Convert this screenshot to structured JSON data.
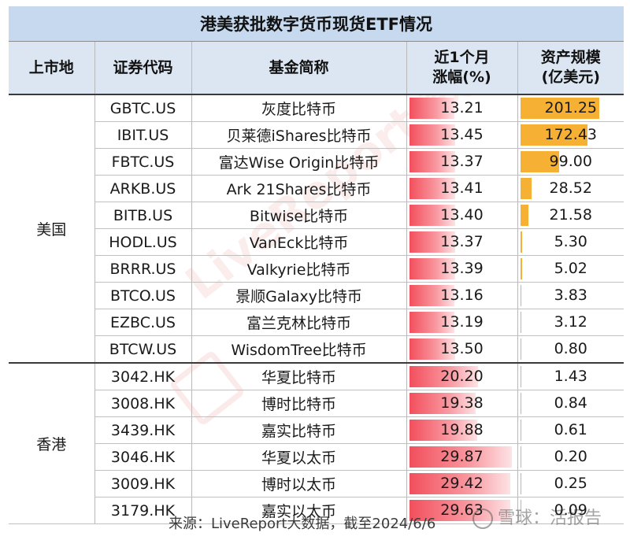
{
  "title": "港美获批数字货币现货ETF情况",
  "headers": {
    "market": "上市地",
    "ticker": "证券代码",
    "name": "基金简称",
    "change_line1": "近1个月",
    "change_line2": "涨幅(%)",
    "aum_line1": "资产规模",
    "aum_line2": "(亿美元)"
  },
  "groups": [
    {
      "region": "美国",
      "rows": [
        {
          "ticker": "GBTC.US",
          "name": "灰度比特币",
          "change": "13.21",
          "aum": "201.25"
        },
        {
          "ticker": "IBIT.US",
          "name": "贝莱德iShares比特币",
          "change": "13.45",
          "aum": "172.43"
        },
        {
          "ticker": "FBTC.US",
          "name": "富达Wise Origin比特币",
          "change": "13.37",
          "aum": "99.00"
        },
        {
          "ticker": "ARKB.US",
          "name": "Ark 21Shares比特币",
          "change": "13.41",
          "aum": "28.52"
        },
        {
          "ticker": "BITB.US",
          "name": "Bitwise比特币",
          "change": "13.40",
          "aum": "21.58"
        },
        {
          "ticker": "HODL.US",
          "name": "VanEck比特币",
          "change": "13.37",
          "aum": "5.30"
        },
        {
          "ticker": "BRRR.US",
          "name": "Valkyrie比特币",
          "change": "13.39",
          "aum": "5.02"
        },
        {
          "ticker": "BTCO.US",
          "name": "景顺Galaxy比特币",
          "change": "13.16",
          "aum": "3.83"
        },
        {
          "ticker": "EZBC.US",
          "name": "富兰克林比特币",
          "change": "13.19",
          "aum": "3.12"
        },
        {
          "ticker": "BTCW.US",
          "name": "WisdomTree比特币",
          "change": "13.50",
          "aum": "0.80"
        }
      ]
    },
    {
      "region": "香港",
      "rows": [
        {
          "ticker": "3042.HK",
          "name": "华夏比特币",
          "change": "20.20",
          "aum": "1.43"
        },
        {
          "ticker": "3008.HK",
          "name": "博时比特币",
          "change": "19.38",
          "aum": "0.84"
        },
        {
          "ticker": "3439.HK",
          "name": "嘉实比特币",
          "change": "19.88",
          "aum": "0.61"
        },
        {
          "ticker": "3046.HK",
          "name": "华夏以太币",
          "change": "29.87",
          "aum": "0.20"
        },
        {
          "ticker": "3009.HK",
          "name": "博时以太币",
          "change": "29.42",
          "aum": "0.25"
        },
        {
          "ticker": "3179.HK",
          "name": "嘉实以太币",
          "change": "29.63",
          "aum": "0.09"
        }
      ]
    }
  ],
  "source": "来源：LiveReport大数据，截至2024/6/6",
  "watermark_center": "LiveReport 数据",
  "watermark_corner": "雪球：活报告",
  "colors": {
    "title_bg": "#c6d9ef",
    "header_bg": "#dce6f2",
    "change_bar": "#f24f5c",
    "aum_bar": "#f6b034"
  }
}
